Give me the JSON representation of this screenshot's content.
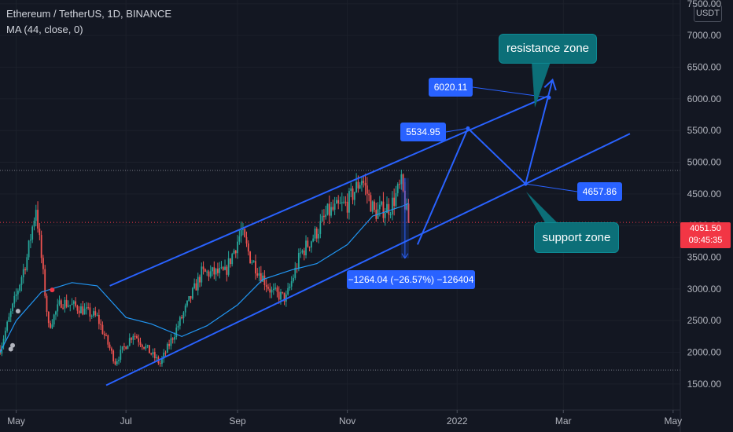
{
  "legend": {
    "title": "Ethereum / TetherUS, 1D, BINANCE",
    "indicator": "MA (44, close, 0)"
  },
  "unit_button": "USDT",
  "last_price": {
    "price": "4051.50",
    "countdown": "09:45:35"
  },
  "colors": {
    "background": "#131722",
    "up": "#26a69a",
    "down": "#ef5350",
    "ma": "#2196f3",
    "drawing": "#2962ff",
    "note": "#0c6f78",
    "price_tag": "#f23645"
  },
  "annotations": {
    "resistance_note": "resistance zone",
    "support_note": "support zone",
    "label_6020": "6020.11",
    "label_5534": "5534.95",
    "label_4657": "4657.86",
    "measure": "−1264.04 (−26.57%) −126404"
  },
  "chart_data": {
    "type": "candlestick",
    "title": "Ethereum / TetherUS, 1D, BINANCE",
    "y_axis": {
      "range": [
        1090,
        7560
      ],
      "ticks": [
        "7500.00",
        "7000.00",
        "6500.00",
        "6000.00",
        "5500.00",
        "5000.00",
        "4500.00",
        "4000.00",
        "3500.00",
        "3000.00",
        "2500.00",
        "2000.00",
        "1500.00"
      ]
    },
    "x_axis": {
      "ticks": [
        "May",
        "Jul",
        "Sep",
        "Nov",
        "2022",
        "Mar",
        "May"
      ]
    },
    "grid": true,
    "horizontal_levels": [
      4870,
      1720
    ],
    "price_series": [
      [
        "2021-04-22",
        2050
      ],
      [
        "2021-05-01",
        2900
      ],
      [
        "2021-05-07",
        3500
      ],
      [
        "2021-05-12",
        4300
      ],
      [
        "2021-05-19",
        2400
      ],
      [
        "2021-05-26",
        2800
      ],
      [
        "2021-06-05",
        2700
      ],
      [
        "2021-06-15",
        2550
      ],
      [
        "2021-06-25",
        1850
      ],
      [
        "2021-07-05",
        2300
      ],
      [
        "2021-07-20",
        1820
      ],
      [
        "2021-08-01",
        2550
      ],
      [
        "2021-08-12",
        3250
      ],
      [
        "2021-08-25",
        3250
      ],
      [
        "2021-09-03",
        3900
      ],
      [
        "2021-09-08",
        3500
      ],
      [
        "2021-09-20",
        2950
      ],
      [
        "2021-09-28",
        2850
      ],
      [
        "2021-10-06",
        3550
      ],
      [
        "2021-10-15",
        3900
      ],
      [
        "2021-10-21",
        4200
      ],
      [
        "2021-11-01",
        4350
      ],
      [
        "2021-11-09",
        4750
      ],
      [
        "2021-11-16",
        4200
      ],
      [
        "2021-11-25",
        4300
      ],
      [
        "2021-12-01",
        4650
      ],
      [
        "2021-12-05",
        4050
      ]
    ],
    "ma_44": [
      [
        "2021-04-22",
        2000
      ],
      [
        "2021-05-01",
        2500
      ],
      [
        "2021-05-15",
        2950
      ],
      [
        "2021-06-01",
        3100
      ],
      [
        "2021-06-15",
        3050
      ],
      [
        "2021-07-01",
        2550
      ],
      [
        "2021-07-15",
        2450
      ],
      [
        "2021-08-01",
        2250
      ],
      [
        "2021-08-15",
        2420
      ],
      [
        "2021-09-01",
        2750
      ],
      [
        "2021-09-15",
        3150
      ],
      [
        "2021-10-01",
        3300
      ],
      [
        "2021-10-15",
        3400
      ],
      [
        "2021-11-01",
        3700
      ],
      [
        "2021-11-15",
        4150
      ],
      [
        "2021-12-01",
        4300
      ],
      [
        "2021-12-05",
        4350
      ]
    ],
    "trendlines": [
      {
        "name": "channel-top",
        "from": [
          "2021-06-22",
          3050
        ],
        "to": [
          "2022-02-21",
          6050
        ]
      },
      {
        "name": "channel-bottom",
        "from": [
          "2021-06-20",
          1480
        ],
        "to": [
          "2022-04-07",
          5450
        ]
      },
      {
        "name": "projection",
        "points": [
          [
            "2021-12-10",
            3700
          ],
          [
            "2022-01-07",
            5535
          ],
          [
            "2022-02-08",
            4658
          ],
          [
            "2022-02-23",
            6300
          ]
        ]
      }
    ],
    "measure": {
      "from": 4750,
      "to": 3485,
      "change": -1264.04,
      "percent": -26.57
    }
  }
}
